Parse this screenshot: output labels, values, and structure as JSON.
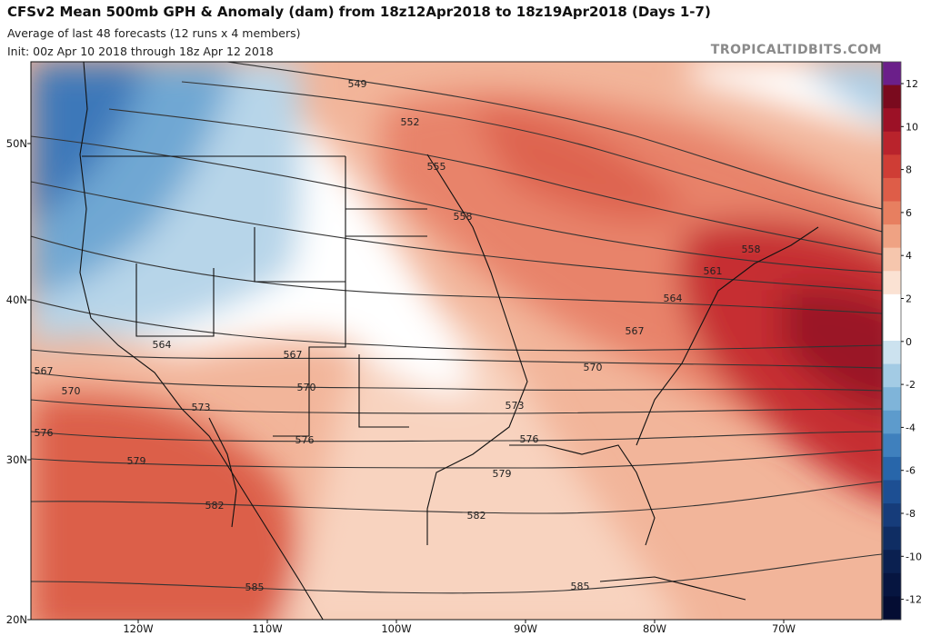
{
  "header": {
    "title": "CFSv2 Mean 500mb GPH & Anomaly (dam) from 18z12Apr2018 to 18z19Apr2018 (Days 1-7)",
    "subtitle": "Average of last 48 forecasts (12 runs x 4 members)",
    "init": "Init: 00z Apr 10 2018 through 18z Apr 12 2018",
    "brand": "TROPICALTIDBITS.COM"
  },
  "map": {
    "lat_labels": [
      "50N",
      "40N",
      "30N",
      "20N"
    ],
    "lon_labels": [
      "120W",
      "110W",
      "100W",
      "90W",
      "80W",
      "70W"
    ],
    "contour_labels": [
      "549",
      "552",
      "555",
      "558",
      "558",
      "561",
      "564",
      "564",
      "567",
      "567",
      "567",
      "570",
      "570",
      "570",
      "573",
      "573",
      "576",
      "576",
      "576",
      "579",
      "579",
      "582",
      "582",
      "585",
      "585"
    ]
  },
  "colorbar": {
    "ticks": [
      "12",
      "10",
      "8",
      "6",
      "4",
      "2",
      "0",
      "-2",
      "-4",
      "-6",
      "-8",
      "-10",
      "-12"
    ],
    "colors": [
      "#6b1f8a",
      "#7a0a1e",
      "#9c1126",
      "#b9232c",
      "#cf3d35",
      "#de5d48",
      "#e77f60",
      "#efa283",
      "#f6c6ad",
      "#fbe2d3",
      "#ffffff",
      "#ffffff",
      "#cce2ef",
      "#a3cbe4",
      "#7fb4d9",
      "#5d9bcc",
      "#3f80bd",
      "#2866aa",
      "#1d4f93",
      "#163c7a",
      "#0f2d63",
      "#0a2050",
      "#061540",
      "#040d33"
    ]
  }
}
